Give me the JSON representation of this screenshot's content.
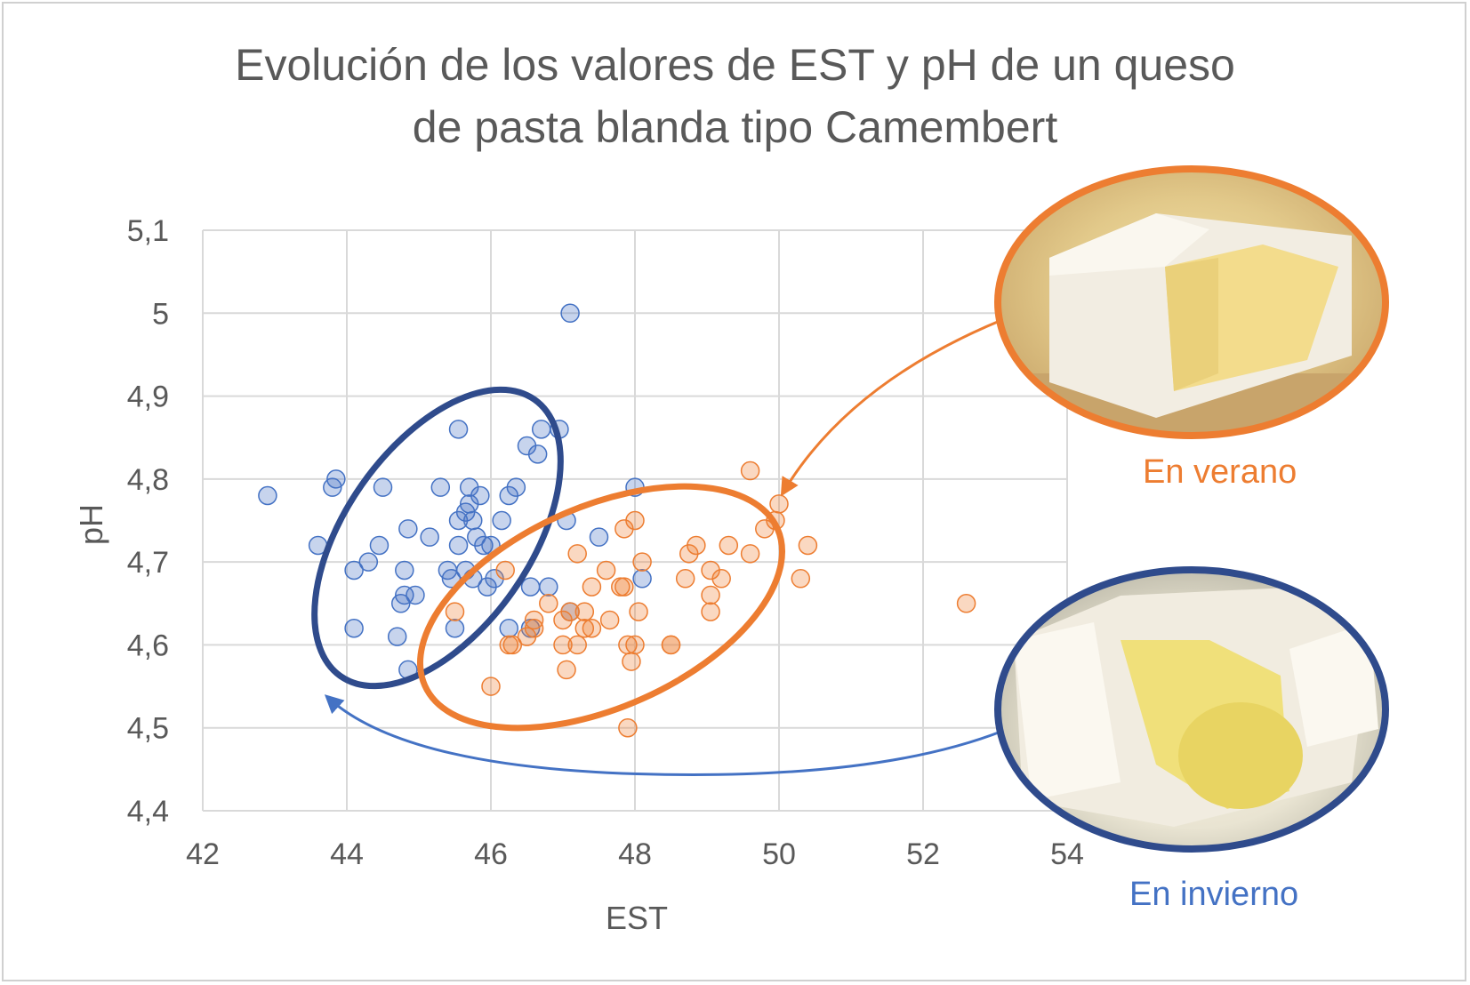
{
  "title": {
    "line1": "Evolución de los valores de EST y pH de un queso",
    "line2": "de pasta blanda tipo Camembert"
  },
  "photos": {
    "summer_label": "En verano",
    "winter_label": "En invierno"
  },
  "colors": {
    "winter": "#4472c4",
    "winter_ellipse": "#2f4b8c",
    "summer": "#ed7d31",
    "grid": "#d9d9d9",
    "axis_text": "#595959"
  },
  "chart_data": {
    "type": "scatter",
    "title": "Evolución de los valores de EST y pH de un queso de pasta blanda tipo Camembert",
    "xlabel": "EST",
    "ylabel": "pH",
    "xlim": [
      42,
      54
    ],
    "ylim": [
      4.4,
      5.1
    ],
    "x_ticks": [
      "42",
      "44",
      "46",
      "48",
      "50",
      "52",
      "54"
    ],
    "y_ticks": [
      "4,4",
      "4,5",
      "4,6",
      "4,7",
      "4,8",
      "4,9",
      "5",
      "5,1"
    ],
    "grid": true,
    "series": [
      {
        "name": "En invierno",
        "points": [
          [
            42.9,
            4.78
          ],
          [
            43.6,
            4.72
          ],
          [
            43.8,
            4.79
          ],
          [
            43.85,
            4.8
          ],
          [
            44.1,
            4.62
          ],
          [
            44.1,
            4.69
          ],
          [
            44.3,
            4.7
          ],
          [
            44.45,
            4.72
          ],
          [
            44.5,
            4.79
          ],
          [
            44.7,
            4.61
          ],
          [
            44.75,
            4.65
          ],
          [
            44.8,
            4.66
          ],
          [
            44.8,
            4.69
          ],
          [
            44.85,
            4.74
          ],
          [
            44.85,
            4.57
          ],
          [
            44.95,
            4.66
          ],
          [
            45.15,
            4.73
          ],
          [
            45.3,
            4.79
          ],
          [
            45.4,
            4.69
          ],
          [
            45.45,
            4.68
          ],
          [
            45.5,
            4.62
          ],
          [
            45.55,
            4.72
          ],
          [
            45.55,
            4.75
          ],
          [
            45.55,
            4.86
          ],
          [
            45.65,
            4.69
          ],
          [
            45.65,
            4.76
          ],
          [
            45.7,
            4.79
          ],
          [
            45.7,
            4.77
          ],
          [
            45.75,
            4.75
          ],
          [
            45.75,
            4.68
          ],
          [
            45.8,
            4.73
          ],
          [
            45.85,
            4.78
          ],
          [
            45.9,
            4.72
          ],
          [
            45.95,
            4.67
          ],
          [
            46.0,
            4.72
          ],
          [
            46.05,
            4.68
          ],
          [
            46.15,
            4.75
          ],
          [
            46.25,
            4.78
          ],
          [
            46.25,
            4.62
          ],
          [
            46.35,
            4.79
          ],
          [
            46.5,
            4.84
          ],
          [
            46.55,
            4.67
          ],
          [
            46.55,
            4.62
          ],
          [
            46.65,
            4.83
          ],
          [
            46.7,
            4.86
          ],
          [
            46.8,
            4.67
          ],
          [
            46.95,
            4.86
          ],
          [
            47.05,
            4.75
          ],
          [
            47.1,
            4.64
          ],
          [
            47.1,
            5.0
          ],
          [
            47.5,
            4.73
          ],
          [
            48.0,
            4.79
          ],
          [
            48.1,
            4.68
          ]
        ]
      },
      {
        "name": "En verano",
        "points": [
          [
            45.5,
            4.64
          ],
          [
            46.0,
            4.55
          ],
          [
            46.2,
            4.69
          ],
          [
            46.25,
            4.6
          ],
          [
            46.3,
            4.6
          ],
          [
            46.5,
            4.61
          ],
          [
            46.6,
            4.62
          ],
          [
            46.6,
            4.63
          ],
          [
            46.8,
            4.65
          ],
          [
            47.0,
            4.63
          ],
          [
            47.0,
            4.6
          ],
          [
            47.05,
            4.57
          ],
          [
            47.1,
            4.64
          ],
          [
            47.2,
            4.6
          ],
          [
            47.2,
            4.71
          ],
          [
            47.3,
            4.64
          ],
          [
            47.3,
            4.62
          ],
          [
            47.4,
            4.67
          ],
          [
            47.4,
            4.62
          ],
          [
            47.6,
            4.69
          ],
          [
            47.65,
            4.63
          ],
          [
            47.8,
            4.67
          ],
          [
            47.85,
            4.74
          ],
          [
            47.85,
            4.67
          ],
          [
            47.9,
            4.6
          ],
          [
            47.9,
            4.5
          ],
          [
            47.95,
            4.58
          ],
          [
            48.0,
            4.75
          ],
          [
            48.0,
            4.6
          ],
          [
            48.05,
            4.64
          ],
          [
            48.1,
            4.7
          ],
          [
            48.5,
            4.6
          ],
          [
            48.5,
            4.6
          ],
          [
            48.7,
            4.68
          ],
          [
            48.75,
            4.71
          ],
          [
            48.85,
            4.72
          ],
          [
            49.05,
            4.66
          ],
          [
            49.05,
            4.69
          ],
          [
            49.05,
            4.64
          ],
          [
            49.2,
            4.68
          ],
          [
            49.3,
            4.72
          ],
          [
            49.6,
            4.71
          ],
          [
            49.6,
            4.81
          ],
          [
            49.8,
            4.74
          ],
          [
            49.95,
            4.75
          ],
          [
            50.0,
            4.77
          ],
          [
            50.3,
            4.68
          ],
          [
            50.4,
            4.72
          ],
          [
            52.6,
            4.65
          ]
        ]
      }
    ]
  }
}
